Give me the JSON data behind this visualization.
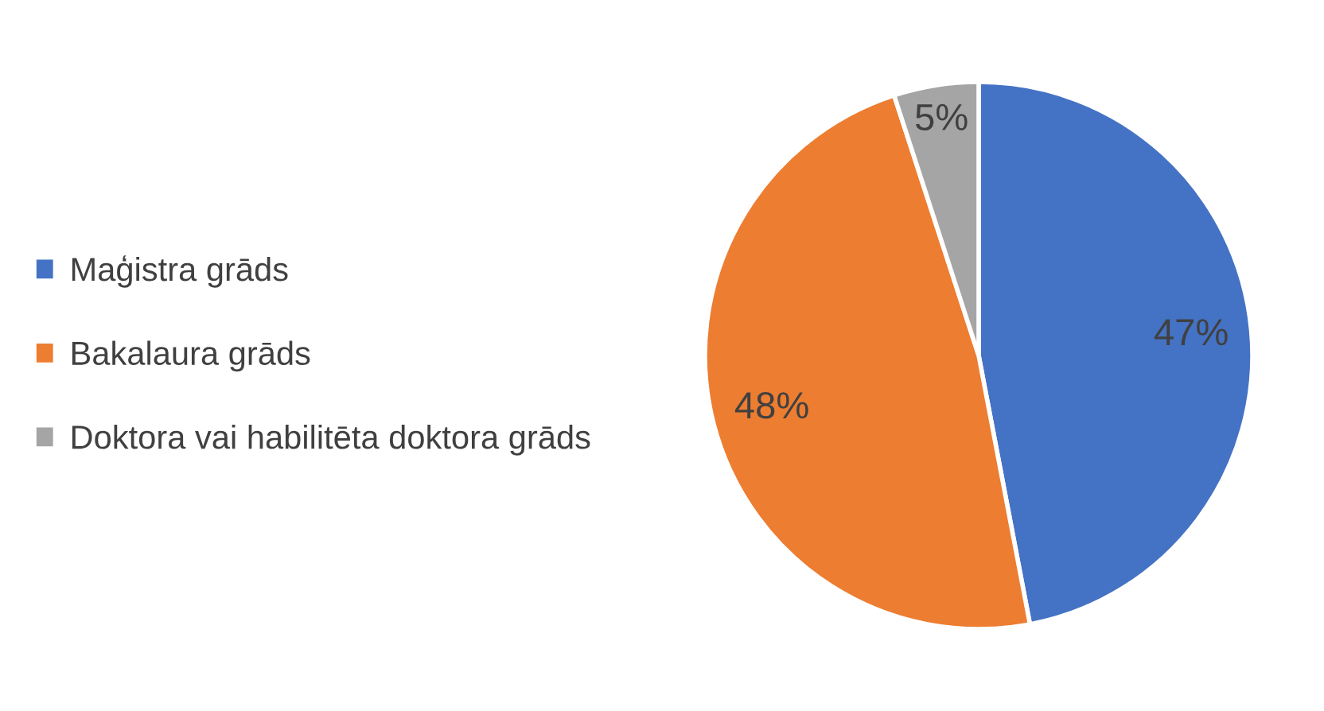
{
  "chart_data": {
    "type": "pie",
    "categories": [
      "Maģistra grāds",
      "Bakalaura grāds",
      "Doktora vai habilitēta doktora grāds"
    ],
    "values": [
      47,
      48,
      5
    ],
    "colors": [
      "#4472c4",
      "#ed7d31",
      "#a5a5a5"
    ],
    "value_labels": [
      "47%",
      "48%",
      "5%"
    ],
    "legend": "left"
  }
}
